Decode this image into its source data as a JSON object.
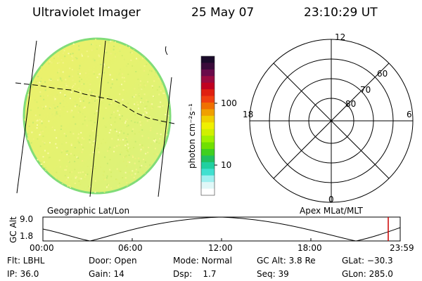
{
  "header": {
    "title": "Ultraviolet Imager",
    "date": "25 May 07",
    "time": "23:10:29 UT"
  },
  "colorbar": {
    "label": "photon cm⁻²s⁻¹",
    "ticks": [
      "100",
      "10"
    ],
    "colors_top_to_bottom": [
      "#1a0a2a",
      "#3a0a3a",
      "#6a0a4a",
      "#9a0a40",
      "#c00020",
      "#e02010",
      "#f04010",
      "#f07000",
      "#f0a000",
      "#f0d000",
      "#f0f000",
      "#d0f000",
      "#a0f000",
      "#70e000",
      "#40d020",
      "#20c060",
      "#20d0a0",
      "#40e0d0",
      "#a0f0f0",
      "#e0f8f8",
      "#ffffff"
    ]
  },
  "image_panel": {
    "label": "Geographic Lat/Lon",
    "fill_color": "#e6f36a",
    "edge_color": "#8ee07a"
  },
  "polar_plot": {
    "label": "Apex MLat/MLT",
    "mlt_labels": {
      "top": "12",
      "left": "18",
      "right": "6",
      "bottom": "0"
    },
    "lat_labels": [
      "60",
      "70",
      "80"
    ]
  },
  "altitude_plot": {
    "ylabel": "GC Alt",
    "yticks": [
      "9.0",
      "1.8"
    ],
    "xticks": [
      "00:00",
      "06:00",
      "12:00",
      "18:00",
      "23:59"
    ],
    "marker_color": "#cc0000"
  },
  "info": {
    "row1": {
      "flt": "Flt: LBHL",
      "door": "Door: Open",
      "mode": "Mode: Normal",
      "gcalt": "GC Alt: 3.8 Re",
      "glat": "GLat: −30.3"
    },
    "row2": {
      "ip": "IP: 36.0",
      "gain": "Gain: 14",
      "dsp": "Dsp:    1.7",
      "seq": "Seq: 39",
      "glon": "GLon: 285.0"
    }
  }
}
